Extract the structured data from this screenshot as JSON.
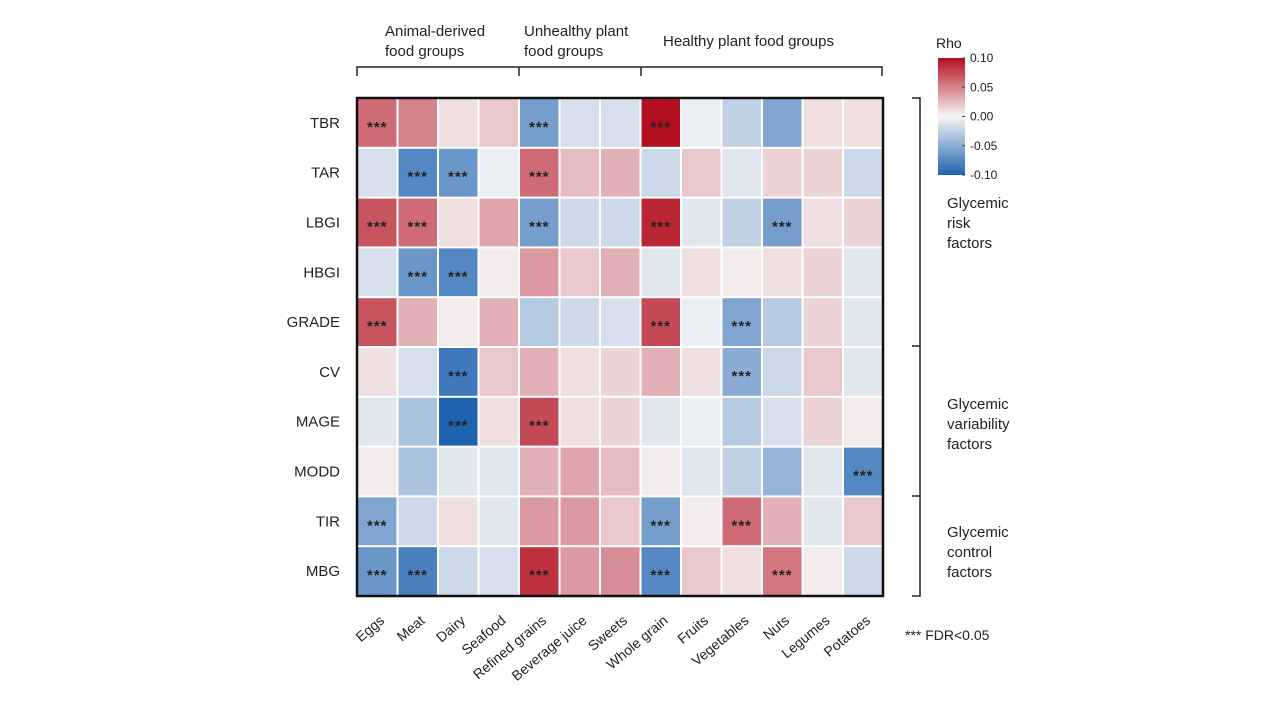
{
  "chart_data": {
    "type": "heatmap",
    "column_groups": [
      {
        "label_lines": [
          "Animal-derived",
          "food groups"
        ],
        "columns": [
          "Eggs",
          "Meat",
          "Dairy",
          "Seafood"
        ]
      },
      {
        "label_lines": [
          "Unhealthy plant",
          "food groups"
        ],
        "columns": [
          "Refined grains",
          "Beverage juice",
          "Sweets"
        ]
      },
      {
        "label_lines": [
          "Healthy plant food groups"
        ],
        "columns": [
          "Whole grain",
          "Fruits",
          "Vegetables",
          "Nuts",
          "Legumes",
          "Potatoes"
        ]
      }
    ],
    "columns": [
      "Eggs",
      "Meat",
      "Dairy",
      "Seafood",
      "Refined grains",
      "Beverage juice",
      "Sweets",
      "Whole grain",
      "Fruits",
      "Vegetables",
      "Nuts",
      "Legumes",
      "Potatoes"
    ],
    "rows": [
      "TBR",
      "TAR",
      "LBGI",
      "HBGI",
      "GRADE",
      "CV",
      "MAGE",
      "MODD",
      "TIR",
      "MBG"
    ],
    "values": [
      [
        0.06,
        0.05,
        0.01,
        0.02,
        -0.06,
        -0.015,
        -0.015,
        0.1,
        -0.005,
        -0.025,
        -0.055,
        0.01,
        0.01
      ],
      [
        -0.015,
        -0.075,
        -0.065,
        -0.005,
        0.06,
        0.025,
        0.03,
        -0.02,
        0.02,
        -0.01,
        0.015,
        0.015,
        -0.02
      ],
      [
        0.07,
        0.06,
        0.01,
        0.035,
        -0.06,
        -0.02,
        -0.02,
        0.09,
        -0.01,
        -0.025,
        -0.06,
        0.01,
        0.015
      ],
      [
        -0.015,
        -0.065,
        -0.075,
        0.005,
        0.04,
        0.02,
        0.03,
        -0.01,
        0.01,
        0.005,
        0.01,
        0.015,
        -0.01
      ],
      [
        0.07,
        0.03,
        0.005,
        0.03,
        -0.03,
        -0.02,
        -0.015,
        0.075,
        -0.005,
        -0.055,
        -0.03,
        0.015,
        -0.01
      ],
      [
        0.01,
        -0.015,
        -0.085,
        0.02,
        0.03,
        0.01,
        0.015,
        0.03,
        0.01,
        -0.05,
        -0.02,
        0.02,
        -0.01
      ],
      [
        -0.01,
        -0.035,
        -0.105,
        0.01,
        0.075,
        0.01,
        0.015,
        -0.01,
        -0.005,
        -0.03,
        -0.015,
        0.015,
        0.005
      ],
      [
        0.005,
        -0.035,
        -0.01,
        -0.01,
        0.03,
        0.035,
        0.025,
        0.005,
        -0.01,
        -0.025,
        -0.045,
        -0.01,
        -0.075
      ],
      [
        -0.055,
        -0.02,
        0.01,
        -0.01,
        0.04,
        0.04,
        0.02,
        -0.06,
        0.005,
        0.06,
        0.03,
        -0.01,
        0.02
      ],
      [
        -0.065,
        -0.08,
        -0.02,
        -0.015,
        0.085,
        0.04,
        0.045,
        -0.075,
        0.02,
        0.01,
        0.055,
        0.005,
        -0.02
      ]
    ],
    "significance": [
      [
        1,
        0,
        0,
        0,
        1,
        0,
        0,
        1,
        0,
        0,
        0,
        0,
        0
      ],
      [
        0,
        1,
        1,
        0,
        1,
        0,
        0,
        0,
        0,
        0,
        0,
        0,
        0
      ],
      [
        1,
        1,
        0,
        0,
        1,
        0,
        0,
        1,
        0,
        0,
        1,
        0,
        0
      ],
      [
        0,
        1,
        1,
        0,
        0,
        0,
        0,
        0,
        0,
        0,
        0,
        0,
        0
      ],
      [
        1,
        0,
        0,
        0,
        0,
        0,
        0,
        1,
        0,
        1,
        0,
        0,
        0
      ],
      [
        0,
        0,
        1,
        0,
        0,
        0,
        0,
        0,
        0,
        1,
        0,
        0,
        0
      ],
      [
        0,
        0,
        1,
        0,
        1,
        0,
        0,
        0,
        0,
        0,
        0,
        0,
        0
      ],
      [
        0,
        0,
        0,
        0,
        0,
        0,
        0,
        0,
        0,
        0,
        0,
        0,
        1
      ],
      [
        1,
        0,
        0,
        0,
        0,
        0,
        0,
        1,
        0,
        1,
        0,
        0,
        0
      ],
      [
        1,
        1,
        0,
        0,
        1,
        0,
        0,
        1,
        0,
        0,
        1,
        0,
        0
      ]
    ],
    "significance_marker": "***",
    "row_groups": [
      {
        "label_lines": [
          "Glycemic",
          "risk",
          "factors"
        ],
        "rows": [
          "TBR",
          "TAR",
          "LBGI",
          "HBGI",
          "GRADE"
        ]
      },
      {
        "label_lines": [
          "Glycemic",
          "variability",
          "factors"
        ],
        "rows": [
          "CV",
          "MAGE",
          "MODD"
        ]
      },
      {
        "label_lines": [
          "Glycemic",
          "control",
          "factors"
        ],
        "rows": [
          "TIR",
          "MBG"
        ]
      }
    ],
    "legend": {
      "title": "Rho",
      "ticks": [
        "0.10",
        "0.05",
        "0.00",
        "-0.05",
        "-0.10"
      ],
      "min": -0.1,
      "max": 0.1,
      "colors": {
        "low": "#1f63b0",
        "mid": "#f6f6f6",
        "high": "#b40f20"
      }
    },
    "footnote": "*** FDR<0.05"
  }
}
